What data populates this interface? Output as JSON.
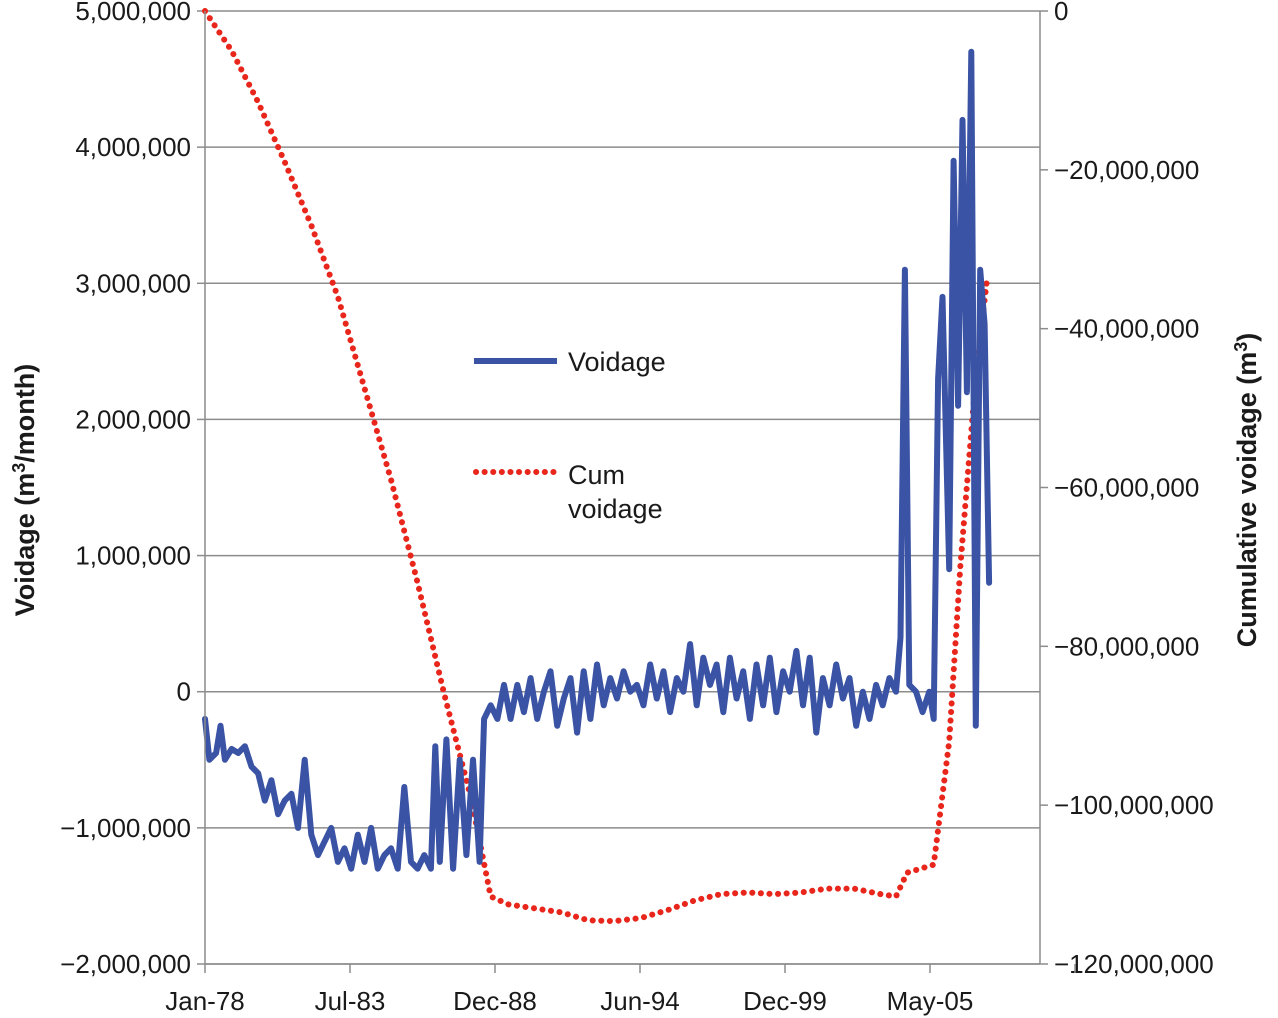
{
  "chart_data": {
    "type": "line",
    "x_tick_labels": [
      "Jan-78",
      "Jul-83",
      "Dec-88",
      "Jun-94",
      "Dec-99",
      "May-05"
    ],
    "xlim": [
      "1978-01",
      "2009-06"
    ],
    "left_axis": {
      "label_parts": [
        "Voidage (m",
        "3",
        "/month)"
      ],
      "ylim": [
        -2000000,
        5000000
      ],
      "tick_labels": [
        "−2,000,000",
        "−1,000,000",
        "0",
        "1,000,000",
        "2,000,000",
        "3,000,000",
        "4,000,000",
        "5,000,000"
      ],
      "tick_values": [
        -2000000,
        -1000000,
        0,
        1000000,
        2000000,
        3000000,
        4000000,
        5000000
      ]
    },
    "right_axis": {
      "label_parts": [
        "Cumulative voidage (m",
        "3",
        ")"
      ],
      "ylim": [
        -120000000,
        0
      ],
      "tick_labels": [
        "−120,000,000",
        "−100,000,000",
        "−80,000,000",
        "−60,000,000",
        "−40,000,000",
        "−20,000,000",
        "0"
      ],
      "tick_values": [
        -120000000,
        -100000000,
        -80000000,
        -60000000,
        -40000000,
        -20000000,
        0
      ]
    },
    "grid": "horizontal",
    "legend_position": "center",
    "series": [
      {
        "name": "Voidage",
        "axis": "left",
        "color": "#3a53a4",
        "style": "solid",
        "points": [
          [
            "1978-01",
            -200000
          ],
          [
            "1978-03",
            -500000
          ],
          [
            "1978-06",
            -450000
          ],
          [
            "1978-08",
            -250000
          ],
          [
            "1978-10",
            -500000
          ],
          [
            "1979-01",
            -420000
          ],
          [
            "1979-04",
            -450000
          ],
          [
            "1979-07",
            -400000
          ],
          [
            "1979-10",
            -550000
          ],
          [
            "1980-01",
            -600000
          ],
          [
            "1980-04",
            -800000
          ],
          [
            "1980-07",
            -650000
          ],
          [
            "1980-10",
            -900000
          ],
          [
            "1981-01",
            -800000
          ],
          [
            "1981-04",
            -750000
          ],
          [
            "1981-07",
            -1000000
          ],
          [
            "1981-10",
            -500000
          ],
          [
            "1982-01",
            -1050000
          ],
          [
            "1982-04",
            -1200000
          ],
          [
            "1982-07",
            -1100000
          ],
          [
            "1982-10",
            -1000000
          ],
          [
            "1983-01",
            -1250000
          ],
          [
            "1983-04",
            -1150000
          ],
          [
            "1983-07",
            -1300000
          ],
          [
            "1983-10",
            -1050000
          ],
          [
            "1984-01",
            -1250000
          ],
          [
            "1984-04",
            -1000000
          ],
          [
            "1984-07",
            -1300000
          ],
          [
            "1984-10",
            -1200000
          ],
          [
            "1985-01",
            -1150000
          ],
          [
            "1985-04",
            -1300000
          ],
          [
            "1985-07",
            -700000
          ],
          [
            "1985-10",
            -1250000
          ],
          [
            "1986-01",
            -1300000
          ],
          [
            "1986-04",
            -1200000
          ],
          [
            "1986-07",
            -1300000
          ],
          [
            "1986-09",
            -400000
          ],
          [
            "1986-11",
            -1250000
          ],
          [
            "1987-02",
            -350000
          ],
          [
            "1987-05",
            -1300000
          ],
          [
            "1987-08",
            -500000
          ],
          [
            "1987-11",
            -1200000
          ],
          [
            "1988-02",
            -500000
          ],
          [
            "1988-05",
            -1250000
          ],
          [
            "1988-07",
            -200000
          ],
          [
            "1988-10",
            -100000
          ],
          [
            "1989-01",
            -200000
          ],
          [
            "1989-04",
            50000
          ],
          [
            "1989-07",
            -200000
          ],
          [
            "1989-10",
            50000
          ],
          [
            "1990-01",
            -150000
          ],
          [
            "1990-04",
            100000
          ],
          [
            "1990-07",
            -200000
          ],
          [
            "1990-10",
            0
          ],
          [
            "1991-01",
            150000
          ],
          [
            "1991-04",
            -250000
          ],
          [
            "1991-07",
            -50000
          ],
          [
            "1991-10",
            100000
          ],
          [
            "1992-01",
            -300000
          ],
          [
            "1992-04",
            150000
          ],
          [
            "1992-07",
            -200000
          ],
          [
            "1992-10",
            200000
          ],
          [
            "1993-01",
            -100000
          ],
          [
            "1993-04",
            100000
          ],
          [
            "1993-07",
            -50000
          ],
          [
            "1993-10",
            150000
          ],
          [
            "1994-01",
            0
          ],
          [
            "1994-04",
            50000
          ],
          [
            "1994-07",
            -100000
          ],
          [
            "1994-10",
            200000
          ],
          [
            "1995-01",
            -50000
          ],
          [
            "1995-04",
            150000
          ],
          [
            "1995-07",
            -150000
          ],
          [
            "1995-10",
            100000
          ],
          [
            "1996-01",
            0
          ],
          [
            "1996-04",
            350000
          ],
          [
            "1996-07",
            -100000
          ],
          [
            "1996-10",
            250000
          ],
          [
            "1997-01",
            50000
          ],
          [
            "1997-04",
            200000
          ],
          [
            "1997-07",
            -150000
          ],
          [
            "1997-10",
            250000
          ],
          [
            "1998-01",
            -50000
          ],
          [
            "1998-04",
            150000
          ],
          [
            "1998-07",
            -200000
          ],
          [
            "1998-10",
            200000
          ],
          [
            "1999-01",
            -100000
          ],
          [
            "1999-04",
            250000
          ],
          [
            "1999-07",
            -150000
          ],
          [
            "1999-10",
            150000
          ],
          [
            "2000-01",
            0
          ],
          [
            "2000-04",
            300000
          ],
          [
            "2000-07",
            -100000
          ],
          [
            "2000-10",
            250000
          ],
          [
            "2001-01",
            -300000
          ],
          [
            "2001-04",
            100000
          ],
          [
            "2001-07",
            -100000
          ],
          [
            "2001-10",
            200000
          ],
          [
            "2002-01",
            -50000
          ],
          [
            "2002-04",
            100000
          ],
          [
            "2002-07",
            -250000
          ],
          [
            "2002-10",
            0
          ],
          [
            "2003-01",
            -200000
          ],
          [
            "2003-04",
            50000
          ],
          [
            "2003-07",
            -100000
          ],
          [
            "2003-10",
            100000
          ],
          [
            "2004-01",
            0
          ],
          [
            "2004-03",
            400000
          ],
          [
            "2004-05",
            3100000
          ],
          [
            "2004-07",
            50000
          ],
          [
            "2004-10",
            0
          ],
          [
            "2005-01",
            -150000
          ],
          [
            "2005-04",
            0
          ],
          [
            "2005-06",
            -200000
          ],
          [
            "2005-08",
            2300000
          ],
          [
            "2005-10",
            2900000
          ],
          [
            "2006-01",
            900000
          ],
          [
            "2006-03",
            3900000
          ],
          [
            "2006-05",
            2100000
          ],
          [
            "2006-07",
            4200000
          ],
          [
            "2006-09",
            2200000
          ],
          [
            "2006-11",
            4700000
          ],
          [
            "2007-01",
            -250000
          ],
          [
            "2007-03",
            3100000
          ],
          [
            "2007-05",
            2700000
          ],
          [
            "2007-07",
            800000
          ]
        ]
      },
      {
        "name": "Cum voidage",
        "axis": "right",
        "color": "#e8261c",
        "style": "dotted",
        "points": [
          [
            "1978-01",
            0
          ],
          [
            "1979-01",
            -5000000
          ],
          [
            "1980-01",
            -11500000
          ],
          [
            "1981-01",
            -19000000
          ],
          [
            "1982-01",
            -27000000
          ],
          [
            "1983-01",
            -36000000
          ],
          [
            "1984-01",
            -47500000
          ],
          [
            "1985-01",
            -59000000
          ],
          [
            "1986-01",
            -72000000
          ],
          [
            "1987-01",
            -86000000
          ],
          [
            "1988-01",
            -99000000
          ],
          [
            "1988-10",
            -111500000
          ],
          [
            "1989-06",
            -112500000
          ],
          [
            "1990-06",
            -113000000
          ],
          [
            "1991-06",
            -113500000
          ],
          [
            "1992-06",
            -114500000
          ],
          [
            "1993-06",
            -114600000
          ],
          [
            "1994-06",
            -114200000
          ],
          [
            "1995-06",
            -113200000
          ],
          [
            "1996-06",
            -112000000
          ],
          [
            "1997-06",
            -111200000
          ],
          [
            "1998-06",
            -111000000
          ],
          [
            "1999-06",
            -111200000
          ],
          [
            "2000-06",
            -111000000
          ],
          [
            "2001-06",
            -110500000
          ],
          [
            "2002-06",
            -110500000
          ],
          [
            "2003-06",
            -111200000
          ],
          [
            "2004-01",
            -111500000
          ],
          [
            "2004-06",
            -108500000
          ],
          [
            "2005-06",
            -107500000
          ],
          [
            "2006-01",
            -92000000
          ],
          [
            "2006-06",
            -70000000
          ],
          [
            "2007-01",
            -46000000
          ],
          [
            "2007-06",
            -34000000
          ]
        ]
      }
    ]
  }
}
